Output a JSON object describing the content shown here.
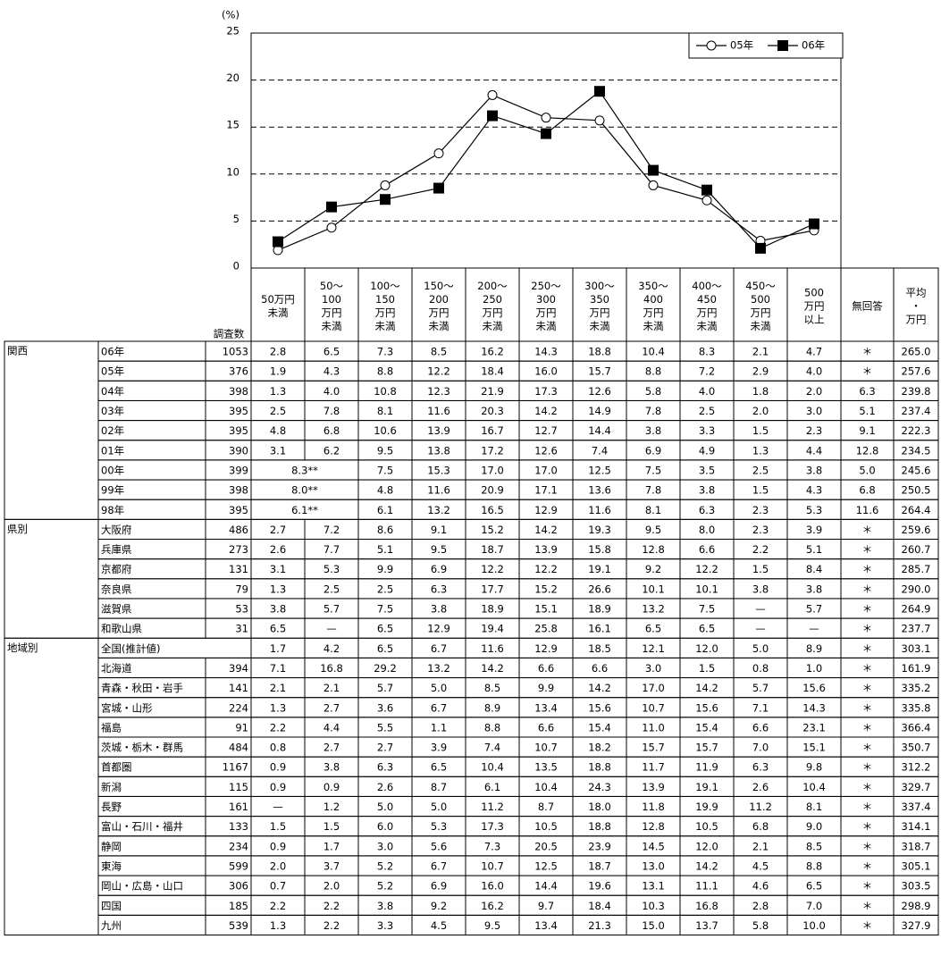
{
  "chart_data": {
    "type": "line",
    "unit_label": "(%)",
    "ylim": [
      0,
      25
    ],
    "yticks": [
      0,
      5,
      10,
      15,
      20,
      25
    ],
    "grid": true,
    "legend": "top-right",
    "series": [
      {
        "name": "05年",
        "color": "#000000",
        "marker": "open-circle",
        "values": [
          1.9,
          4.3,
          8.8,
          12.2,
          18.4,
          16.0,
          15.7,
          8.8,
          7.2,
          2.9,
          4.0
        ]
      },
      {
        "name": "06年",
        "color": "#000000",
        "marker": "filled-square",
        "values": [
          2.8,
          6.5,
          7.3,
          8.5,
          16.2,
          14.3,
          18.8,
          10.4,
          8.3,
          2.1,
          4.7
        ]
      }
    ]
  },
  "table": {
    "n_header": "調査数",
    "headers": [
      [
        "50万円",
        "未満"
      ],
      [
        "50～",
        "100",
        "万円",
        "未満"
      ],
      [
        "100～",
        "150",
        "万円",
        "未満"
      ],
      [
        "150～",
        "200",
        "万円",
        "未満"
      ],
      [
        "200～",
        "250",
        "万円",
        "未満"
      ],
      [
        "250～",
        "300",
        "万円",
        "未満"
      ],
      [
        "300～",
        "350",
        "万円",
        "未満"
      ],
      [
        "350～",
        "400",
        "万円",
        "未満"
      ],
      [
        "400～",
        "450",
        "万円",
        "未満"
      ],
      [
        "450～",
        "500",
        "万円",
        "未満"
      ],
      [
        "500",
        "万円",
        "以上"
      ],
      [
        "無回答"
      ],
      [
        "平均",
        "・",
        "万円"
      ]
    ],
    "groups": [
      {
        "name": "関西",
        "rows": [
          {
            "label": "06年",
            "n": "1053",
            "cells": [
              "2.8",
              "6.5",
              "7.3",
              "8.5",
              "16.2",
              "14.3",
              "18.8",
              "10.4",
              "8.3",
              "2.1",
              "4.7",
              "＊",
              "265.0"
            ]
          },
          {
            "label": "05年",
            "n": "376",
            "cells": [
              "1.9",
              "4.3",
              "8.8",
              "12.2",
              "18.4",
              "16.0",
              "15.7",
              "8.8",
              "7.2",
              "2.9",
              "4.0",
              "＊",
              "257.6"
            ]
          },
          {
            "label": "04年",
            "n": "398",
            "cells": [
              "1.3",
              "4.0",
              "10.8",
              "12.3",
              "21.9",
              "17.3",
              "12.6",
              "5.8",
              "4.0",
              "1.8",
              "2.0",
              "6.3",
              "239.8"
            ]
          },
          {
            "label": "03年",
            "n": "395",
            "cells": [
              "2.5",
              "7.8",
              "8.1",
              "11.6",
              "20.3",
              "14.2",
              "14.9",
              "7.8",
              "2.5",
              "2.0",
              "3.0",
              "5.1",
              "237.4"
            ]
          },
          {
            "label": "02年",
            "n": "395",
            "cells": [
              "4.8",
              "6.8",
              "10.6",
              "13.9",
              "16.7",
              "12.7",
              "14.4",
              "3.8",
              "3.3",
              "1.5",
              "2.3",
              "9.1",
              "222.3"
            ]
          },
          {
            "label": "01年",
            "n": "390",
            "cells": [
              "3.1",
              "6.2",
              "9.5",
              "13.8",
              "17.2",
              "12.6",
              "7.4",
              "6.9",
              "4.9",
              "1.3",
              "4.4",
              "12.8",
              "234.5"
            ]
          },
          {
            "label": "00年",
            "n": "399",
            "cells": [
              "8.3**",
              "7.5",
              "15.3",
              "17.0",
              "17.0",
              "12.5",
              "7.5",
              "3.5",
              "2.5",
              "3.8",
              "5.0",
              "245.6"
            ]
          },
          {
            "label": "99年",
            "n": "398",
            "cells": [
              "8.0**",
              "4.8",
              "11.6",
              "20.9",
              "17.1",
              "13.6",
              "7.8",
              "3.8",
              "1.5",
              "4.3",
              "6.8",
              "250.5"
            ]
          },
          {
            "label": "98年",
            "n": "395",
            "cells": [
              "6.1**",
              "6.1",
              "13.2",
              "16.5",
              "12.9",
              "11.6",
              "8.1",
              "6.3",
              "2.3",
              "5.3",
              "11.6",
              "264.4"
            ]
          }
        ]
      },
      {
        "name": "県別",
        "rows": [
          {
            "label": "大阪府",
            "n": "486",
            "cells": [
              "2.7",
              "7.2",
              "8.6",
              "9.1",
              "15.2",
              "14.2",
              "19.3",
              "9.5",
              "8.0",
              "2.3",
              "3.9",
              "＊",
              "259.6"
            ]
          },
          {
            "label": "兵庫県",
            "n": "273",
            "cells": [
              "2.6",
              "7.7",
              "5.1",
              "9.5",
              "18.7",
              "13.9",
              "15.8",
              "12.8",
              "6.6",
              "2.2",
              "5.1",
              "＊",
              "260.7"
            ]
          },
          {
            "label": "京都府",
            "n": "131",
            "cells": [
              "3.1",
              "5.3",
              "9.9",
              "6.9",
              "12.2",
              "12.2",
              "19.1",
              "9.2",
              "12.2",
              "1.5",
              "8.4",
              "＊",
              "285.7"
            ]
          },
          {
            "label": "奈良県",
            "n": "79",
            "cells": [
              "1.3",
              "2.5",
              "2.5",
              "6.3",
              "17.7",
              "15.2",
              "26.6",
              "10.1",
              "10.1",
              "3.8",
              "3.8",
              "＊",
              "290.0"
            ]
          },
          {
            "label": "滋賀県",
            "n": "53",
            "cells": [
              "3.8",
              "5.7",
              "7.5",
              "3.8",
              "18.9",
              "15.1",
              "18.9",
              "13.2",
              "7.5",
              "—",
              "5.7",
              "＊",
              "264.9"
            ]
          },
          {
            "label": "和歌山県",
            "n": "31",
            "cells": [
              "6.5",
              "—",
              "6.5",
              "12.9",
              "19.4",
              "25.8",
              "16.1",
              "6.5",
              "6.5",
              "—",
              "—",
              "＊",
              "237.7"
            ]
          }
        ]
      },
      {
        "name": "地域別",
        "rows": [
          {
            "label": "全国(推計値)",
            "cells": [
              "1.7",
              "4.2",
              "6.5",
              "6.7",
              "11.6",
              "12.9",
              "18.5",
              "12.1",
              "12.0",
              "5.0",
              "8.9",
              "＊",
              "303.1"
            ]
          },
          {
            "label": "北海道",
            "n": "394",
            "cells": [
              "7.1",
              "16.8",
              "29.2",
              "13.2",
              "14.2",
              "6.6",
              "6.6",
              "3.0",
              "1.5",
              "0.8",
              "1.0",
              "＊",
              "161.9"
            ]
          },
          {
            "label": "青森・秋田・岩手",
            "n": "141",
            "cells": [
              "2.1",
              "2.1",
              "5.7",
              "5.0",
              "8.5",
              "9.9",
              "14.2",
              "17.0",
              "14.2",
              "5.7",
              "15.6",
              "＊",
              "335.2"
            ]
          },
          {
            "label": "宮城・山形",
            "n": "224",
            "cells": [
              "1.3",
              "2.7",
              "3.6",
              "6.7",
              "8.9",
              "13.4",
              "15.6",
              "10.7",
              "15.6",
              "7.1",
              "14.3",
              "＊",
              "335.8"
            ]
          },
          {
            "label": "福島",
            "n": "91",
            "cells": [
              "2.2",
              "4.4",
              "5.5",
              "1.1",
              "8.8",
              "6.6",
              "15.4",
              "11.0",
              "15.4",
              "6.6",
              "23.1",
              "＊",
              "366.4"
            ]
          },
          {
            "label": "茨城・栃木・群馬",
            "n": "484",
            "cells": [
              "0.8",
              "2.7",
              "2.7",
              "3.9",
              "7.4",
              "10.7",
              "18.2",
              "15.7",
              "15.7",
              "7.0",
              "15.1",
              "＊",
              "350.7"
            ]
          },
          {
            "label": "首都圏",
            "n": "1167",
            "cells": [
              "0.9",
              "3.8",
              "6.3",
              "6.5",
              "10.4",
              "13.5",
              "18.8",
              "11.7",
              "11.9",
              "6.3",
              "9.8",
              "＊",
              "312.2"
            ]
          },
          {
            "label": "新潟",
            "n": "115",
            "cells": [
              "0.9",
              "0.9",
              "2.6",
              "8.7",
              "6.1",
              "10.4",
              "24.3",
              "13.9",
              "19.1",
              "2.6",
              "10.4",
              "＊",
              "329.7"
            ]
          },
          {
            "label": "長野",
            "n": "161",
            "cells": [
              "—",
              "1.2",
              "5.0",
              "5.0",
              "11.2",
              "8.7",
              "18.0",
              "11.8",
              "19.9",
              "11.2",
              "8.1",
              "＊",
              "337.4"
            ]
          },
          {
            "label": "富山・石川・福井",
            "n": "133",
            "cells": [
              "1.5",
              "1.5",
              "6.0",
              "5.3",
              "17.3",
              "10.5",
              "18.8",
              "12.8",
              "10.5",
              "6.8",
              "9.0",
              "＊",
              "314.1"
            ]
          },
          {
            "label": "静岡",
            "n": "234",
            "cells": [
              "0.9",
              "1.7",
              "3.0",
              "5.6",
              "7.3",
              "20.5",
              "23.9",
              "14.5",
              "12.0",
              "2.1",
              "8.5",
              "＊",
              "318.7"
            ]
          },
          {
            "label": "東海",
            "n": "599",
            "cells": [
              "2.0",
              "3.7",
              "5.2",
              "6.7",
              "10.7",
              "12.5",
              "18.7",
              "13.0",
              "14.2",
              "4.5",
              "8.8",
              "＊",
              "305.1"
            ]
          },
          {
            "label": "岡山・広島・山口",
            "n": "306",
            "cells": [
              "0.7",
              "2.0",
              "5.2",
              "6.9",
              "16.0",
              "14.4",
              "19.6",
              "13.1",
              "11.1",
              "4.6",
              "6.5",
              "＊",
              "303.5"
            ]
          },
          {
            "label": "四国",
            "n": "185",
            "cells": [
              "2.2",
              "2.2",
              "3.8",
              "9.2",
              "16.2",
              "9.7",
              "18.4",
              "10.3",
              "16.8",
              "2.8",
              "7.0",
              "＊",
              "298.9"
            ]
          },
          {
            "label": "九州",
            "n": "539",
            "cells": [
              "1.3",
              "2.2",
              "3.3",
              "4.5",
              "9.5",
              "13.4",
              "21.3",
              "15.0",
              "13.7",
              "5.8",
              "10.0",
              "＊",
              "327.9"
            ]
          }
        ]
      }
    ]
  }
}
